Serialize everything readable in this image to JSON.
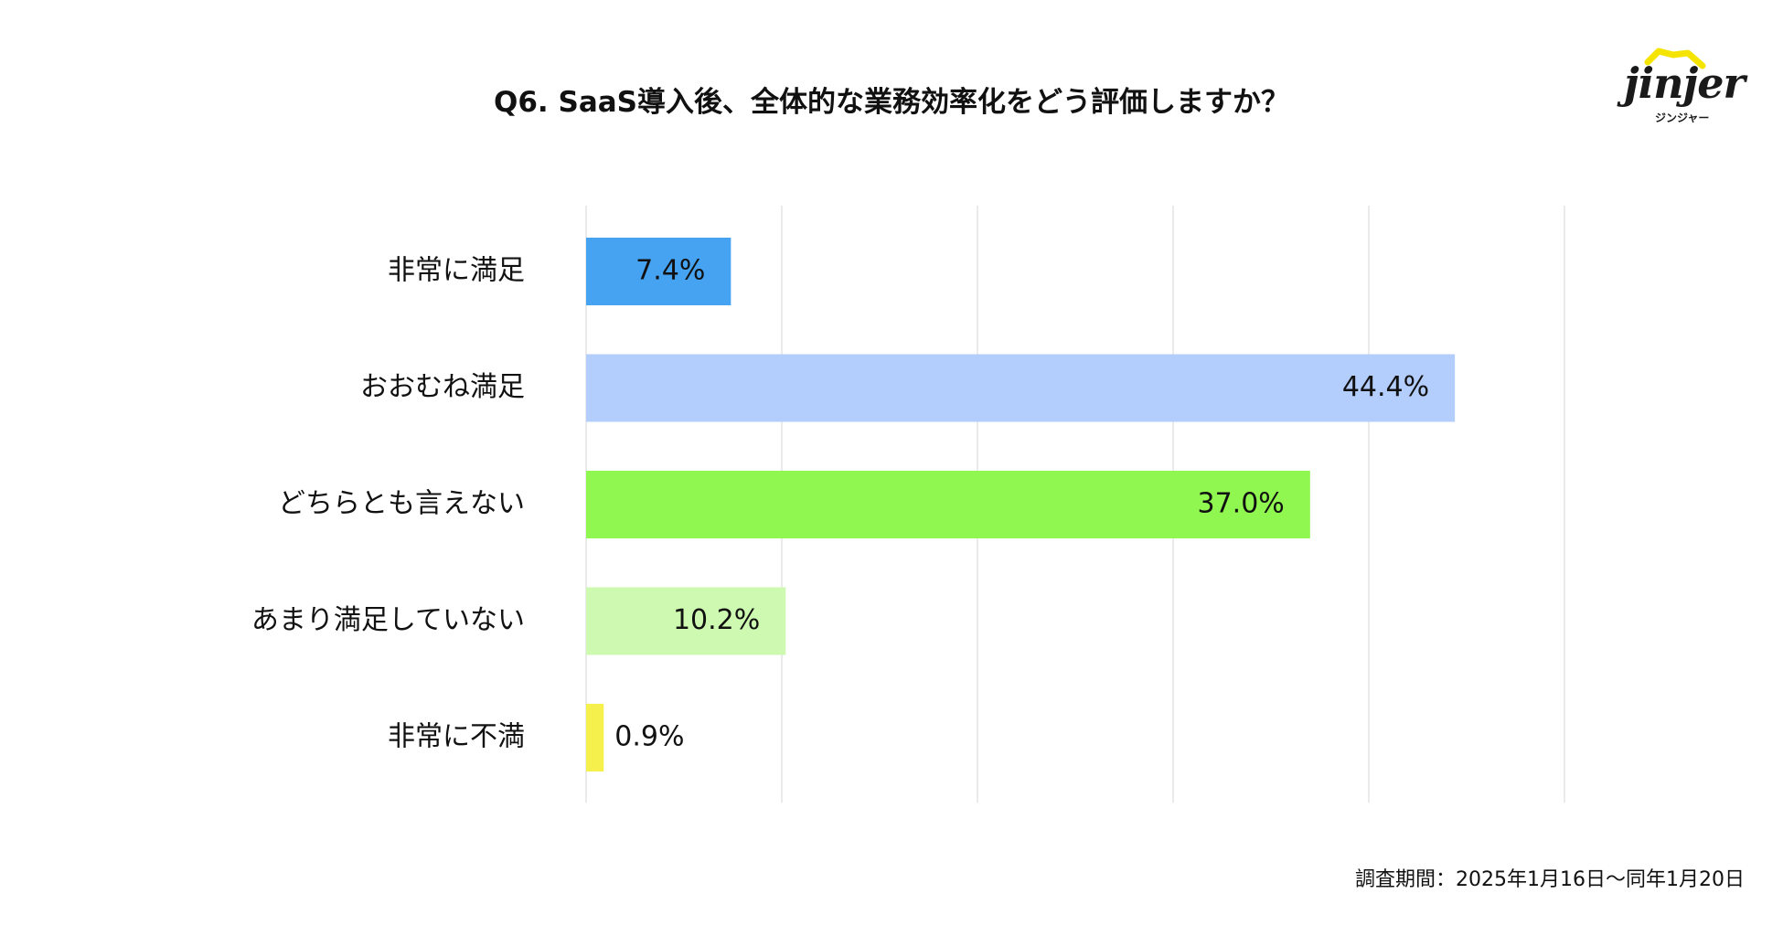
{
  "title": "Q6. SaaS導入後、全体的な業務効率化をどう評価しますか？",
  "logo": {
    "text": "jinjer",
    "kana": "ジンジャー",
    "accent_color": "#f5e400"
  },
  "footnote": "調査期間：2025年1月16日〜同年1月20日",
  "chart_data": {
    "type": "bar",
    "orientation": "horizontal",
    "title": "Q6. SaaS導入後、全体的な業務効率化をどう評価しますか？",
    "categories": [
      "非常に満足",
      "おおむね満足",
      "どちらとも言えない",
      "あまり満足していない",
      "非常に不満"
    ],
    "values": [
      7.4,
      44.4,
      37.0,
      10.2,
      0.9
    ],
    "value_labels": [
      "7.4%",
      "44.4%",
      "37.0%",
      "10.2%",
      "0.9%"
    ],
    "colors": [
      "#46a3f1",
      "#b3cdfc",
      "#8ff74f",
      "#cdf9b0",
      "#f6f04d"
    ],
    "xlim": [
      0,
      50
    ],
    "grid": true,
    "legend": "none"
  }
}
